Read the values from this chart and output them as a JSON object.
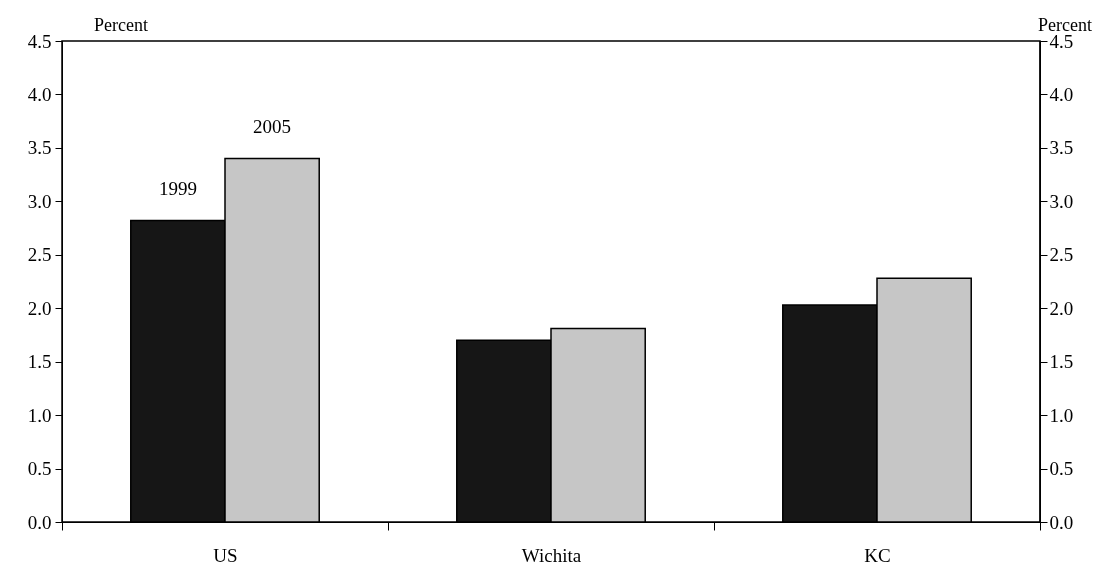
{
  "chart_data": {
    "type": "bar",
    "ylabel": "Percent",
    "y2label": "Percent",
    "categories": [
      "US",
      "Wichita",
      "KC"
    ],
    "series": [
      {
        "name": "1999",
        "color": "#161616",
        "values": [
          2.82,
          1.7,
          2.03
        ]
      },
      {
        "name": "2005",
        "color": "#c6c6c6",
        "values": [
          3.4,
          1.81,
          2.28
        ]
      }
    ],
    "ylim": [
      0,
      4.5
    ],
    "yticks": [
      {
        "value": 0,
        "label": "0.0"
      },
      {
        "value": 0.5,
        "label": "0.5"
      },
      {
        "value": 1,
        "label": "1.0"
      },
      {
        "value": 1.5,
        "label": "1.5"
      },
      {
        "value": 2,
        "label": "2.0"
      },
      {
        "value": 2.5,
        "label": "2.5"
      },
      {
        "value": 3,
        "label": "3.0"
      },
      {
        "value": 3.5,
        "label": "3.5"
      },
      {
        "value": 4,
        "label": "4.0"
      },
      {
        "value": 4.5,
        "label": "4.5"
      }
    ],
    "y2lim": [
      0,
      4.5
    ],
    "y2ticks": [
      {
        "value": 0,
        "label": "0.0"
      },
      {
        "value": 0.5,
        "label": "0.5"
      },
      {
        "value": 1,
        "label": "1.0"
      },
      {
        "value": 1.5,
        "label": "1.5"
      },
      {
        "value": 2,
        "label": "2.0"
      },
      {
        "value": 2.5,
        "label": "2.5"
      },
      {
        "value": 3,
        "label": "3.0"
      },
      {
        "value": 3.5,
        "label": "3.5"
      },
      {
        "value": 4,
        "label": "4.0"
      },
      {
        "value": 4.5,
        "label": "4.5"
      }
    ],
    "grid": false,
    "legend": false
  }
}
